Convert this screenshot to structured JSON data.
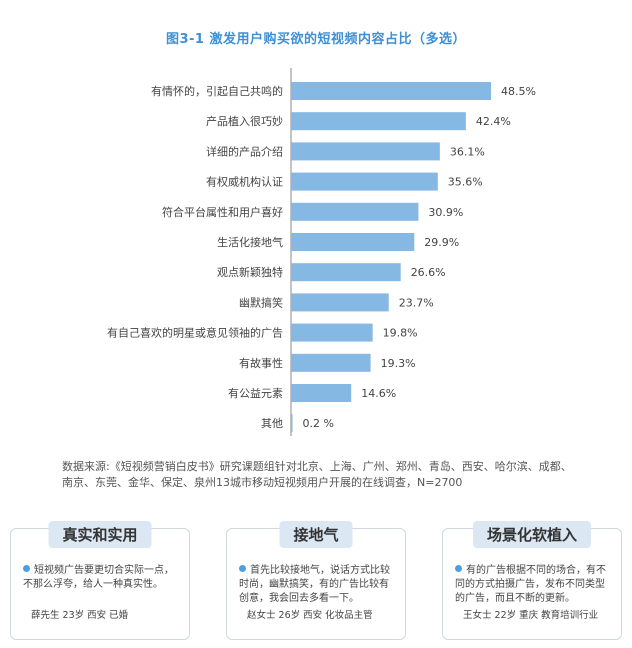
{
  "chart_data": {
    "type": "bar",
    "orientation": "horizontal",
    "title": "图3-1  激发用户购买欲的短视频内容占比（多选）",
    "categories": [
      "有情怀的，引起自己共鸣的",
      "产品植入很巧妙",
      "详细的产品介绍",
      "有权威机构认证",
      "符合平台属性和用户喜好",
      "生活化接地气",
      "观点新颖独特",
      "幽默搞笑",
      "有自己喜欢的明星或意见领袖的广告",
      "有故事性",
      "有公益元素",
      "其他"
    ],
    "values": [
      48.5,
      42.4,
      36.1,
      35.6,
      30.9,
      29.9,
      26.6,
      23.7,
      19.8,
      19.3,
      14.6,
      0.2
    ],
    "value_labels": [
      "48.5%",
      "42.4%",
      "36.1%",
      "35.6%",
      "30.9%",
      "29.9%",
      "26.6%",
      "23.7%",
      "19.8%",
      "19.3%",
      "14.6%",
      "0.2 %"
    ],
    "xlim": [
      0,
      60
    ],
    "grid": false,
    "bar_color": "#86b8e4",
    "accent_color": "#3d8fd6"
  },
  "source": {
    "line1": "数据来源:《短视频营销白皮书》研究课题组针对北京、上海、广州、郑州、青岛、西安、哈尔滨、成都、",
    "line2": "南京、东莞、金华、保定、泉州13城市移动短视频用户开展的在线调查，N=2700"
  },
  "cards": [
    {
      "title": "真实和实用",
      "text": "短视频广告要更切合实际一点，不那么浮夸，给人一种真实性。",
      "author": "薛先生  23岁  西安 已婚"
    },
    {
      "title": "接地气",
      "text": "首先比较接地气，说话方式比较时尚，幽默搞笑，有的广告比较有创意，我会回去多看一下。",
      "author": "赵女士  26岁  西安 化妆品主管"
    },
    {
      "title": "场景化软植入",
      "text": "有的广告根据不同的场合，有不同的方式拍摄广告，发布不同类型的广告，而且不断的更新。",
      "author": "王女士   22岁   重庆  教育培训行业"
    }
  ]
}
